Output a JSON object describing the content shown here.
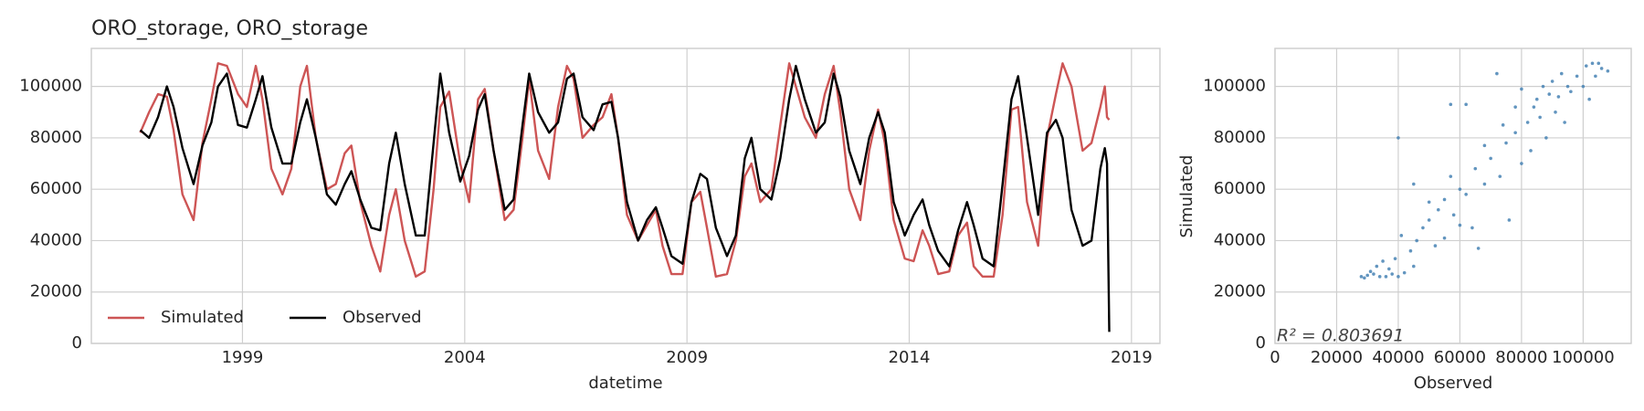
{
  "chart_data": [
    {
      "type": "line",
      "title": "ORO_storage, ORO_storage",
      "xlabel": "datetime",
      "x": [
        1996.7,
        1996.9,
        1997.1,
        1997.3,
        1997.45,
        1997.65,
        1997.9,
        1998.1,
        1998.3,
        1998.45,
        1998.65,
        1998.9,
        1999.1,
        1999.3,
        1999.45,
        1999.65,
        1999.9,
        2000.1,
        2000.3,
        2000.45,
        2000.65,
        2000.9,
        2001.1,
        2001.3,
        2001.45,
        2001.65,
        2001.9,
        2002.1,
        2002.3,
        2002.45,
        2002.65,
        2002.9,
        2003.1,
        2003.3,
        2003.45,
        2003.65,
        2003.9,
        2004.1,
        2004.3,
        2004.45,
        2004.65,
        2004.9,
        2005.1,
        2005.3,
        2005.45,
        2005.65,
        2005.9,
        2006.1,
        2006.3,
        2006.45,
        2006.65,
        2006.9,
        2007.1,
        2007.3,
        2007.45,
        2007.65,
        2007.9,
        2008.1,
        2008.3,
        2008.45,
        2008.65,
        2008.9,
        2009.1,
        2009.3,
        2009.45,
        2009.65,
        2009.9,
        2010.1,
        2010.3,
        2010.45,
        2010.65,
        2010.9,
        2011.1,
        2011.3,
        2011.45,
        2011.65,
        2011.9,
        2012.1,
        2012.3,
        2012.45,
        2012.65,
        2012.9,
        2013.1,
        2013.3,
        2013.45,
        2013.65,
        2013.9,
        2014.1,
        2014.3,
        2014.45,
        2014.65,
        2014.9,
        2015.1,
        2015.3,
        2015.45,
        2015.65,
        2015.9,
        2016.1,
        2016.3,
        2016.45,
        2016.65,
        2016.9,
        2017.1,
        2017.3,
        2017.45,
        2017.65,
        2017.9,
        2018.1,
        2018.3,
        2018.4,
        2018.45,
        2018.5
      ],
      "series": [
        {
          "name": "Simulated",
          "color": "#cd5555",
          "values": [
            82000,
            90000,
            97000,
            96000,
            83000,
            58000,
            48000,
            78000,
            95000,
            109000,
            108000,
            97000,
            92000,
            108000,
            95000,
            68000,
            58000,
            68000,
            100000,
            108000,
            80000,
            60000,
            62000,
            74000,
            77000,
            55000,
            38000,
            28000,
            50000,
            60000,
            40000,
            26000,
            28000,
            60000,
            92000,
            98000,
            70000,
            55000,
            95000,
            99000,
            75000,
            48000,
            52000,
            80000,
            103000,
            75000,
            64000,
            92000,
            108000,
            103000,
            80000,
            85000,
            88000,
            97000,
            80000,
            50000,
            40000,
            46000,
            52000,
            38000,
            27000,
            27000,
            55000,
            59000,
            45000,
            26000,
            27000,
            40000,
            65000,
            70000,
            55000,
            60000,
            85000,
            109000,
            100000,
            88000,
            80000,
            97000,
            108000,
            90000,
            60000,
            48000,
            75000,
            91000,
            78000,
            48000,
            33000,
            32000,
            44000,
            38000,
            27000,
            28000,
            42000,
            47000,
            30000,
            26000,
            26000,
            50000,
            91000,
            92000,
            55000,
            38000,
            80000,
            97000,
            109000,
            100000,
            75000,
            78000,
            92000,
            100000,
            88000,
            87000
          ]
        },
        {
          "name": "Observed",
          "color": "#000000",
          "values": [
            83000,
            80000,
            88000,
            100000,
            92000,
            76000,
            62000,
            77000,
            86000,
            100000,
            105000,
            85000,
            84000,
            95000,
            104000,
            84000,
            70000,
            70000,
            86000,
            95000,
            80000,
            58000,
            54000,
            62000,
            67000,
            56000,
            45000,
            44000,
            70000,
            82000,
            62000,
            42000,
            42000,
            78000,
            105000,
            82000,
            63000,
            73000,
            91000,
            97000,
            75000,
            52000,
            56000,
            85000,
            105000,
            90000,
            82000,
            86000,
            103000,
            105000,
            88000,
            83000,
            93000,
            94000,
            80000,
            55000,
            40000,
            48000,
            53000,
            45000,
            34000,
            31000,
            55000,
            66000,
            64000,
            45000,
            34000,
            42000,
            72000,
            80000,
            60000,
            56000,
            72000,
            95000,
            108000,
            95000,
            82000,
            86000,
            105000,
            96000,
            75000,
            62000,
            80000,
            90000,
            82000,
            55000,
            42000,
            50000,
            56000,
            46000,
            36000,
            30000,
            44000,
            55000,
            46000,
            33000,
            30000,
            62000,
            95000,
            104000,
            80000,
            50000,
            82000,
            87000,
            80000,
            52000,
            38000,
            40000,
            68000,
            76000,
            70000,
            4500
          ]
        }
      ],
      "xlim": [
        1995.6,
        2019.64
      ],
      "xticks": [
        1999,
        2004,
        2009,
        2014,
        2019
      ],
      "ylim": [
        0,
        114800
      ],
      "yticks": [
        0,
        20000,
        40000,
        60000,
        80000,
        100000
      ],
      "grid": true,
      "legend": "lower left"
    },
    {
      "type": "scatter",
      "xlabel": "Observed",
      "ylabel": "Simulated",
      "annotation": "R² = 0.803691",
      "color": "#4682b4",
      "x": [
        28000,
        30000,
        32000,
        29000,
        34000,
        36000,
        38000,
        40000,
        42000,
        31000,
        33000,
        35000,
        37000,
        39000,
        41000,
        40000,
        44000,
        46000,
        48000,
        50000,
        45000,
        53000,
        55000,
        52000,
        58000,
        60000,
        57000,
        62000,
        64000,
        66000,
        65000,
        68000,
        70000,
        72000,
        73000,
        75000,
        76000,
        78000,
        80000,
        82000,
        83000,
        84000,
        85000,
        86000,
        87000,
        88000,
        89000,
        90000,
        91000,
        92000,
        93000,
        94000,
        95000,
        96000,
        98000,
        100000,
        101000,
        102000,
        103000,
        104000,
        105000,
        106000,
        108000,
        80000,
        78000,
        62000,
        57000,
        45000,
        50000,
        55000,
        60000,
        68000,
        74000
      ],
      "values": [
        26000,
        26500,
        27000,
        25500,
        26000,
        26000,
        27000,
        26000,
        27500,
        28000,
        30000,
        32000,
        29000,
        33000,
        42000,
        80000,
        36000,
        40000,
        45000,
        48000,
        30000,
        52000,
        56000,
        38000,
        50000,
        60000,
        65000,
        58000,
        45000,
        37000,
        68000,
        62000,
        72000,
        105000,
        65000,
        78000,
        48000,
        82000,
        70000,
        86000,
        75000,
        92000,
        95000,
        88000,
        100000,
        80000,
        97000,
        102000,
        90000,
        96000,
        105000,
        86000,
        100000,
        98000,
        104000,
        100000,
        108000,
        95000,
        109000,
        104000,
        109000,
        107000,
        106000,
        99000,
        92000,
        93000,
        93000,
        62000,
        55000,
        41000,
        46000,
        77000,
        85000
      ],
      "xlim": [
        0,
        115600
      ],
      "xticks": [
        0,
        20000,
        40000,
        60000,
        80000,
        100000
      ],
      "ylim": [
        0,
        114800
      ],
      "yticks": [
        0,
        20000,
        40000,
        60000,
        80000,
        100000
      ],
      "grid": true
    }
  ]
}
